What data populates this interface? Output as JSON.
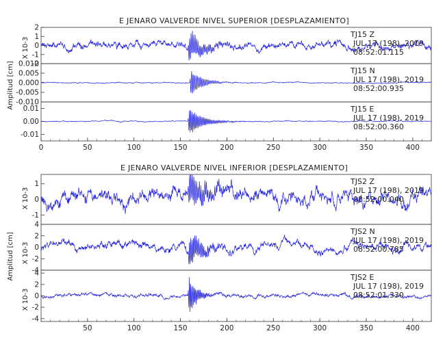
{
  "chart_data": [
    {
      "type": "line",
      "title": "E JENARO VALVERDE NIVEL SUPERIOR [DESPLAZAMIENTO]",
      "ylabel": "Amplitud [cm]",
      "xlim": [
        0,
        420
      ],
      "xticks": [
        "0",
        "50",
        "100",
        "150",
        "200",
        "250",
        "300",
        "350",
        "400"
      ],
      "series_color": "#2222dd",
      "panels": [
        {
          "name": "TJ15 Z",
          "date": "JUL 17 (198), 2019",
          "time": "08:52:01.115",
          "scale_label": "X 10-3",
          "ylim": [
            -2,
            2
          ],
          "yticks": [
            "2",
            "1",
            "0",
            "-1",
            "-2"
          ],
          "baseline": 0.0,
          "noise": 0.45,
          "event_peak": 1.9,
          "event_start": 158,
          "event_decay": 14,
          "event_period": 1.5
        },
        {
          "name": "TJ15 N",
          "date": "JUL 17 (198), 2019",
          "time": "08:52:00.935",
          "scale_label": "",
          "ylim": [
            -0.01,
            0.01
          ],
          "yticks": [
            "0.010",
            "0.005",
            "0.000",
            "-0.005",
            "-0.010"
          ],
          "baseline": 0.0,
          "noise": 0.0003,
          "event_peak": 0.0085,
          "event_start": 160,
          "event_decay": 11,
          "event_period": 1.6
        },
        {
          "name": "TJ15 E",
          "date": "JUL 17 (198), 2019",
          "time": "08:52:00.360",
          "scale_label": "",
          "ylim": [
            -0.015,
            0.015
          ],
          "yticks": [
            "0.01",
            "0.00",
            "-0.01"
          ],
          "baseline": 0.0,
          "noise": 0.0004,
          "event_peak": 0.0125,
          "event_start": 158,
          "event_decay": 14,
          "event_period": 1.4
        }
      ]
    },
    {
      "type": "line",
      "title": "E JENARO VALVERDE NIVEL INFERIOR [DESPLAZAMIENTO]",
      "ylabel": "Amplitud [cm]",
      "xlim": [
        0,
        420
      ],
      "xticks": [
        "50",
        "100",
        "150",
        "200",
        "250",
        "300",
        "350",
        "400"
      ],
      "series_color": "#2222dd",
      "panels": [
        {
          "name": "TJS2 Z",
          "date": "JUL 17 (198), 2019",
          "time": "08:52:00.040",
          "scale_label": "X 10-3",
          "ylim": [
            -1.6,
            1.6
          ],
          "yticks": [
            "1",
            "0",
            "-1"
          ],
          "baseline": 0.0,
          "noise": 0.5,
          "event_peak": 1.3,
          "event_start": 158,
          "event_decay": 20,
          "event_period": 1.5
        },
        {
          "name": "TJS2 N",
          "date": "JUL 17 (198), 2019",
          "time": "08:52:00.785",
          "scale_label": "X 10-3",
          "ylim": [
            -4,
            4
          ],
          "yticks": [
            "4",
            "2",
            "0",
            "-2",
            "-4"
          ],
          "baseline": 0.0,
          "noise": 0.8,
          "event_peak": 3.4,
          "event_start": 158,
          "event_decay": 14,
          "event_period": 1.4
        },
        {
          "name": "TJS2 E",
          "date": "JUL 17 (198), 2019",
          "time": "08:52:01.330",
          "scale_label": "X 10-3",
          "ylim": [
            -4.5,
            4.5
          ],
          "yticks": [
            "4",
            "2",
            "0",
            "-2",
            "-4"
          ],
          "baseline": 0.0,
          "noise": 0.35,
          "event_peak": 4.2,
          "event_start": 158,
          "event_decay": 8,
          "event_period": 1.3
        }
      ]
    }
  ]
}
